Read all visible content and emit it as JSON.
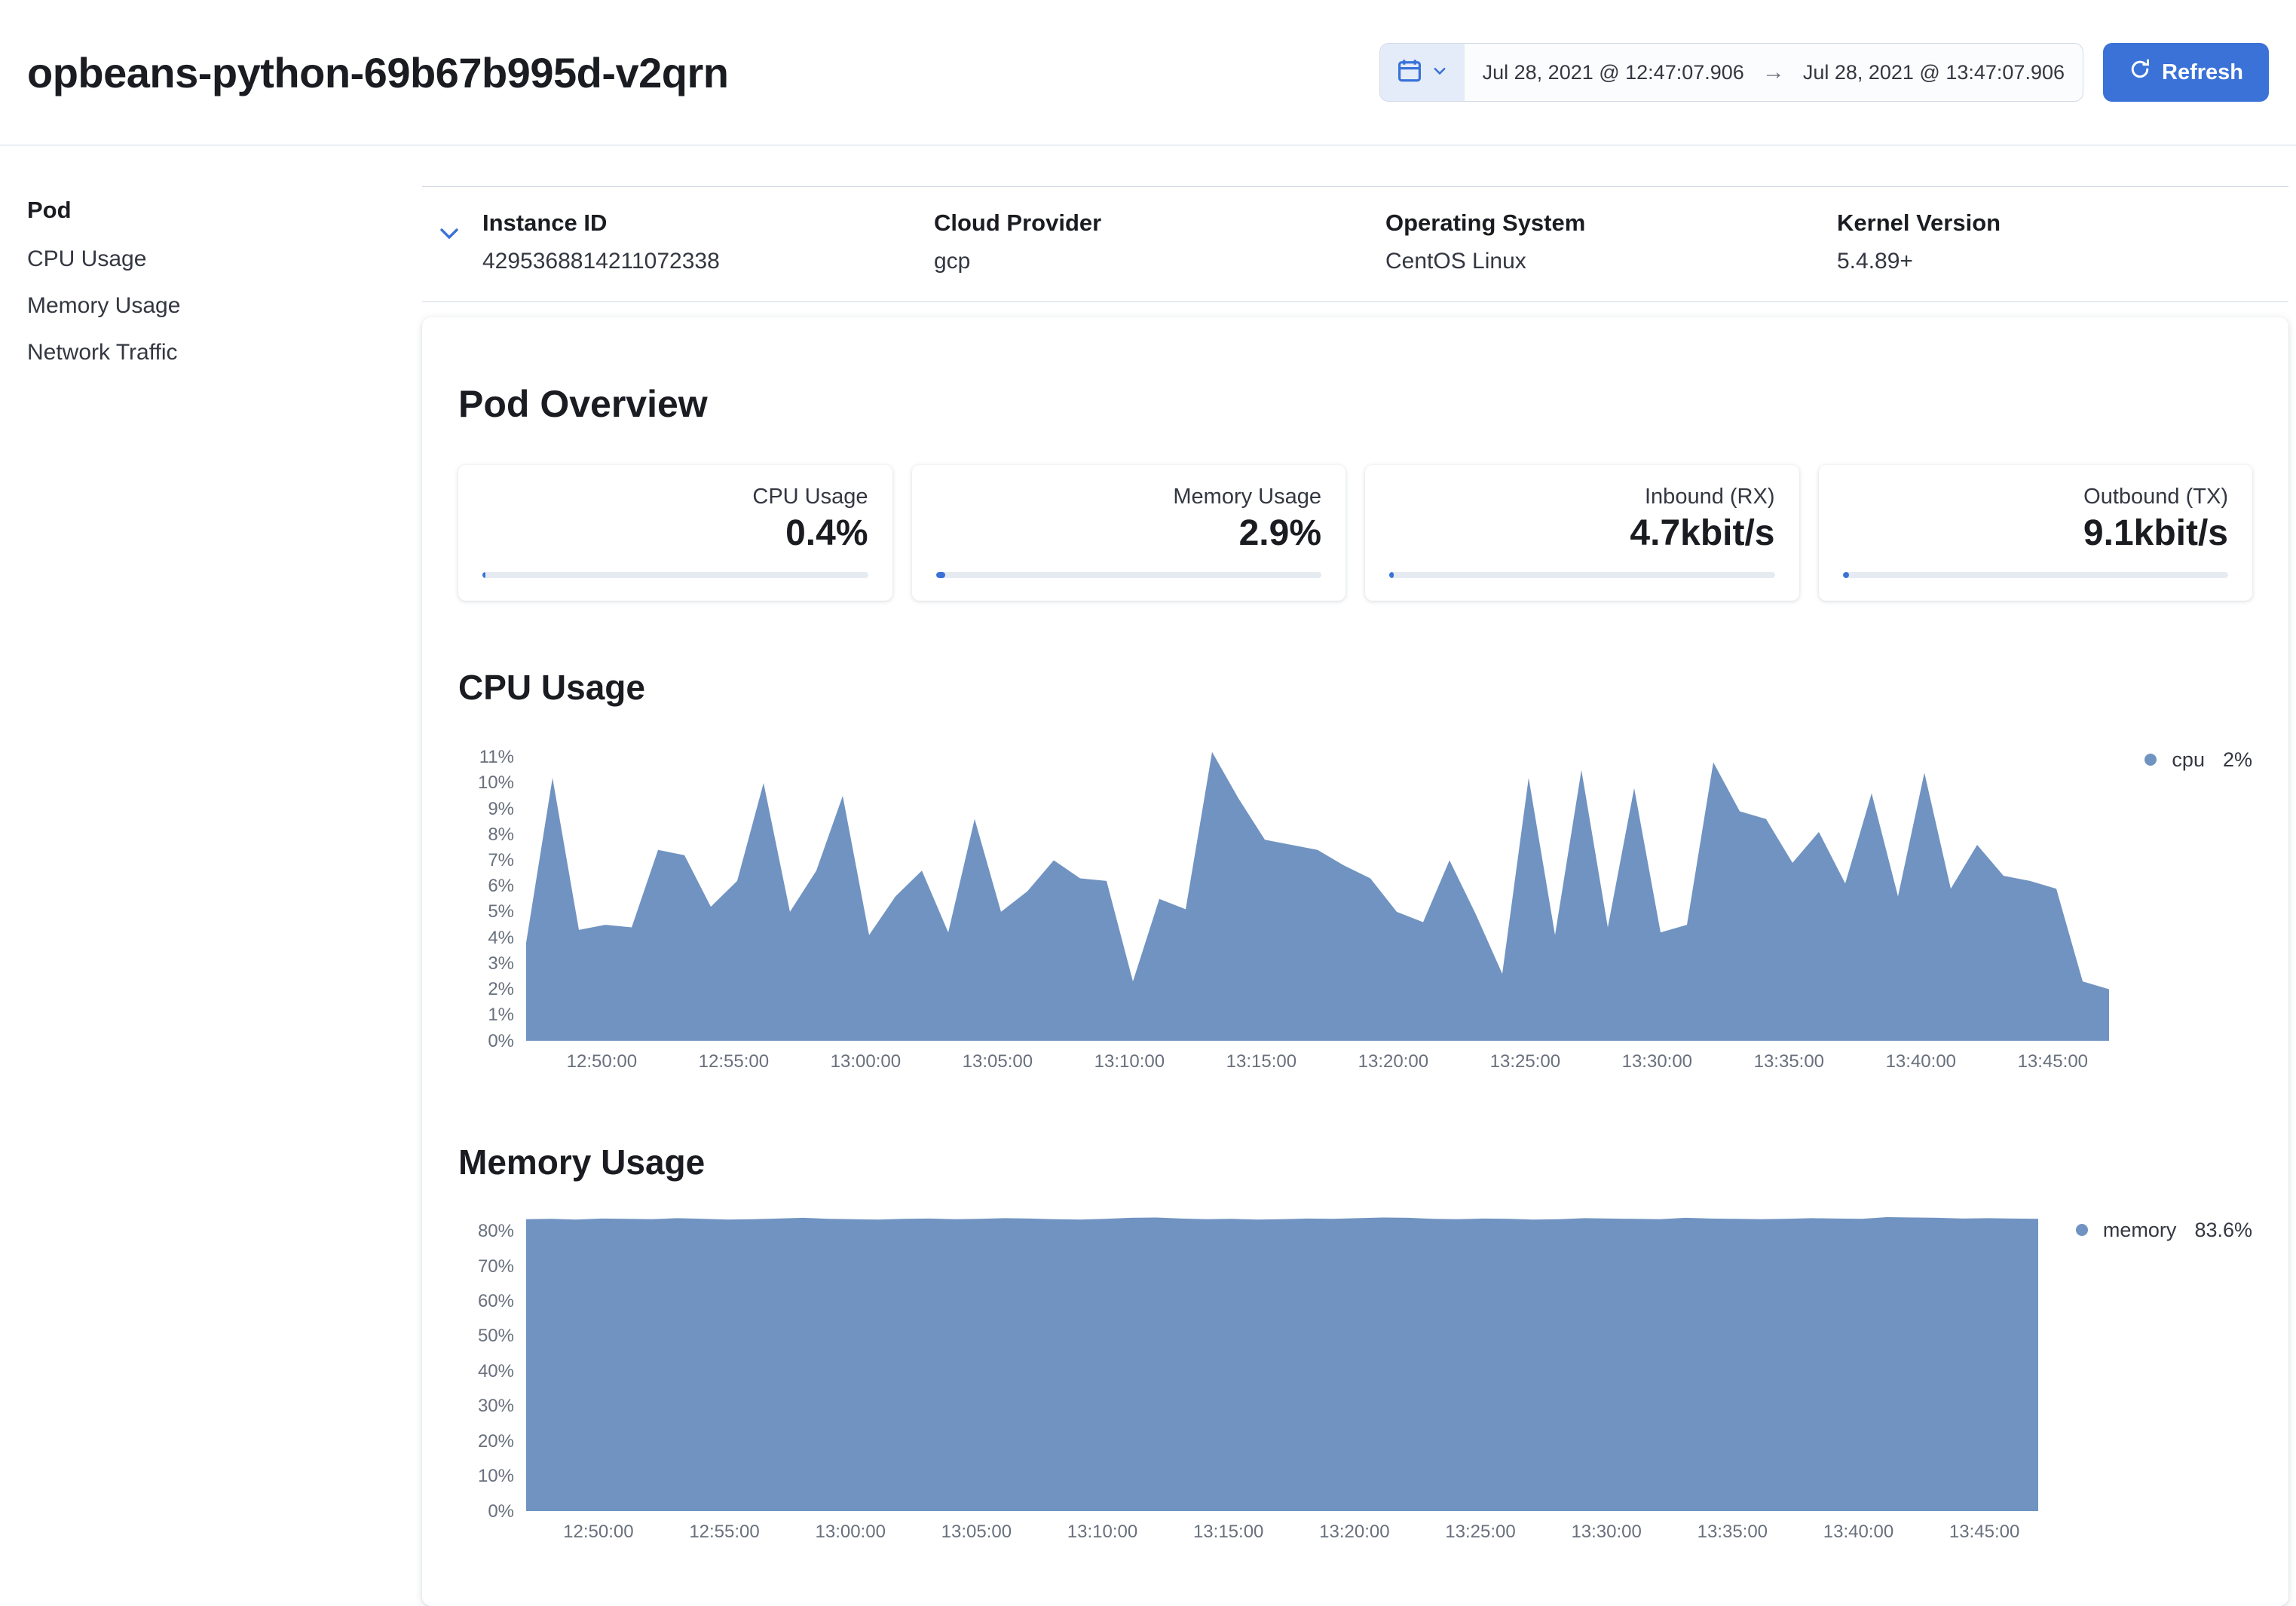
{
  "colors": {
    "accent": "#3a72d8",
    "border": "#d3dae6",
    "text_primary": "#1a1c21",
    "text_secondary": "#343741",
    "axis_text": "#69707d",
    "track": "#e6ebf2"
  },
  "header": {
    "title": "opbeans-python-69b67b995d-v2qrn",
    "date_start": "Jul 28, 2021 @ 12:47:07.906",
    "date_arrow": "→",
    "date_end": "Jul 28, 2021 @ 13:47:07.906",
    "refresh_label": "Refresh"
  },
  "sidebar": {
    "heading": "Pod",
    "items": [
      "CPU Usage",
      "Memory Usage",
      "Network Traffic"
    ]
  },
  "metadata": {
    "fields": [
      {
        "label": "Instance ID",
        "value": "4295368814211072338"
      },
      {
        "label": "Cloud Provider",
        "value": "gcp"
      },
      {
        "label": "Operating System",
        "value": "CentOS Linux"
      },
      {
        "label": "Kernel Version",
        "value": "5.4.89+"
      }
    ]
  },
  "overview": {
    "heading": "Pod Overview",
    "metrics": [
      {
        "label": "CPU Usage",
        "value": "0.4%",
        "bar_percent": 0.8
      },
      {
        "label": "Memory Usage",
        "value": "2.9%",
        "bar_percent": 2.5
      },
      {
        "label": "Inbound (RX)",
        "value": "4.7kbit/s",
        "bar_percent": 1.2
      },
      {
        "label": "Outbound (TX)",
        "value": "9.1kbit/s",
        "bar_percent": 1.6
      }
    ]
  },
  "chart_data": [
    {
      "id": "cpu",
      "type": "area",
      "title": "CPU Usage",
      "legend": {
        "label": "cpu",
        "value": "2%",
        "position": "top-right"
      },
      "color": "#7093c1",
      "grid": false,
      "unit": "%",
      "ylim": [
        0,
        11.4
      ],
      "y_ticks": [
        0,
        1,
        2,
        3,
        4,
        5,
        6,
        7,
        8,
        9,
        10,
        11
      ],
      "y_tick_suffix": "%",
      "x_domain": [
        "12:47:07.906",
        "13:47:07.906"
      ],
      "x_tick_labels": [
        "12:50:00",
        "12:55:00",
        "13:00:00",
        "13:05:00",
        "13:10:00",
        "13:15:00",
        "13:20:00",
        "13:25:00",
        "13:30:00",
        "13:35:00",
        "13:40:00",
        "13:45:00"
      ],
      "x_first_tick_frac": 0.0478,
      "x_tick_step_frac": 0.08333,
      "values": [
        3.8,
        10.2,
        4.3,
        4.5,
        4.4,
        7.4,
        7.2,
        5.2,
        6.2,
        10.0,
        5.0,
        6.6,
        9.5,
        4.1,
        5.6,
        6.6,
        4.2,
        8.6,
        5.0,
        5.8,
        7.0,
        6.3,
        6.2,
        2.3,
        5.5,
        5.1,
        11.2,
        9.4,
        7.8,
        7.6,
        7.4,
        6.8,
        6.3,
        5.0,
        4.6,
        7.0,
        4.9,
        2.6,
        10.2,
        4.1,
        10.5,
        4.4,
        9.8,
        4.2,
        4.5,
        10.8,
        8.9,
        8.6,
        6.9,
        8.1,
        6.1,
        9.6,
        5.6,
        10.4,
        5.9,
        7.6,
        6.4,
        6.2,
        5.9,
        2.3,
        2.0
      ]
    },
    {
      "id": "memory",
      "type": "area",
      "title": "Memory Usage",
      "legend": {
        "label": "memory",
        "value": "83.6%",
        "position": "top-right"
      },
      "color": "#7093c1",
      "grid": false,
      "unit": "%",
      "ylim": [
        0,
        84
      ],
      "y_ticks": [
        0,
        10,
        20,
        30,
        40,
        50,
        60,
        70,
        80
      ],
      "y_tick_suffix": "%",
      "x_domain": [
        "12:47:07.906",
        "13:47:07.906"
      ],
      "x_tick_labels": [
        "12:50:00",
        "12:55:00",
        "13:00:00",
        "13:05:00",
        "13:10:00",
        "13:15:00",
        "13:20:00",
        "13:25:00",
        "13:30:00",
        "13:35:00",
        "13:40:00",
        "13:45:00"
      ],
      "x_first_tick_frac": 0.0478,
      "x_tick_step_frac": 0.08333,
      "values": [
        83.4,
        83.5,
        83.3,
        83.6,
        83.5,
        83.4,
        83.7,
        83.5,
        83.3,
        83.4,
        83.6,
        83.8,
        83.5,
        83.4,
        83.3,
        83.5,
        83.6,
        83.4,
        83.5,
        83.7,
        83.6,
        83.4,
        83.3,
        83.5,
        83.8,
        83.9,
        83.6,
        83.4,
        83.5,
        83.3,
        83.4,
        83.6,
        83.5,
        83.7,
        83.9,
        83.8,
        83.5,
        83.4,
        83.6,
        83.5,
        83.3,
        83.4,
        83.7,
        83.6,
        83.5,
        83.4,
        83.8,
        83.6,
        83.5,
        83.4,
        83.5,
        83.7,
        83.6,
        83.5,
        84.0,
        83.9,
        83.8,
        83.6,
        83.7,
        83.6,
        83.5
      ]
    }
  ]
}
